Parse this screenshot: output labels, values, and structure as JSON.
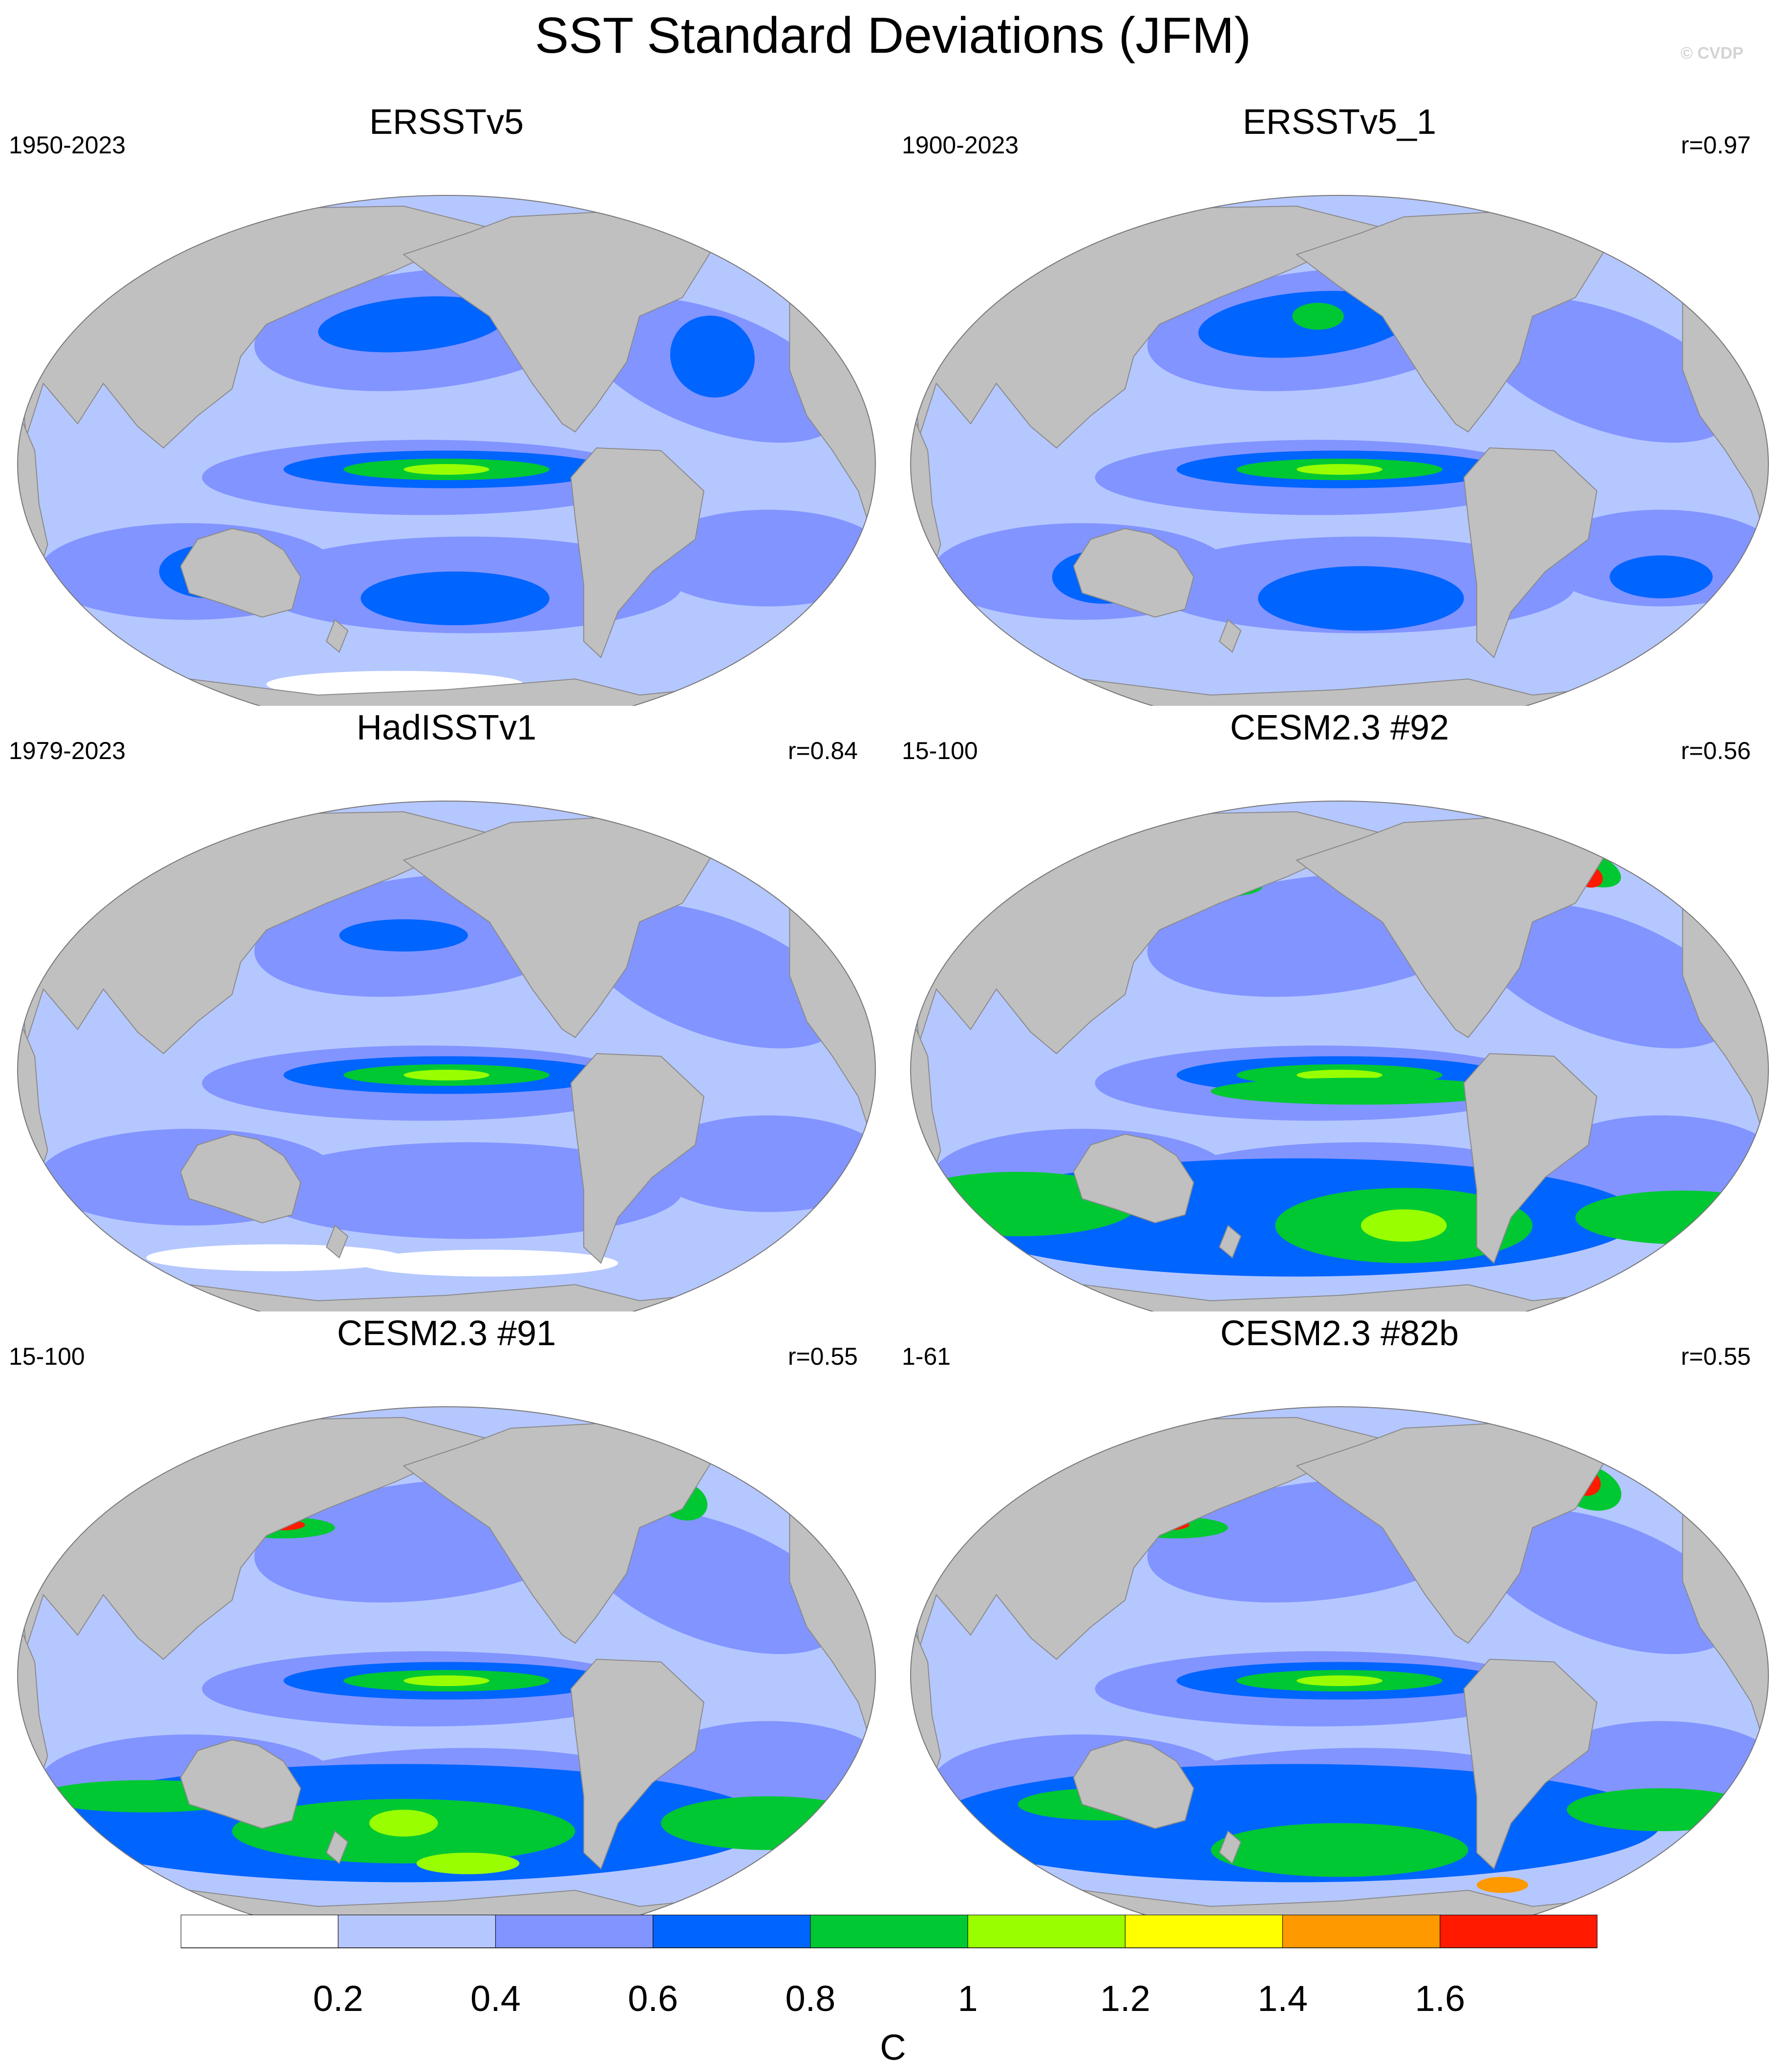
{
  "title": "SST Standard Deviations (JFM)",
  "credit": "© CVDP",
  "colorbar": {
    "units": "C",
    "ticks": [
      "0.2",
      "0.4",
      "0.6",
      "0.8",
      "1",
      "1.2",
      "1.4",
      "1.6"
    ],
    "colors": [
      "#ffffff",
      "#b5c7ff",
      "#8294ff",
      "#0064ff",
      "#00c832",
      "#99ff00",
      "#ffff00",
      "#ff9900",
      "#ff1a00"
    ]
  },
  "land_color": "#c0c0c0",
  "panels": [
    {
      "title": "ERSSTv5",
      "years": "1950-2023",
      "corr": ""
    },
    {
      "title": "ERSSTv5_1",
      "years": "1900-2023",
      "corr": "r=0.97"
    },
    {
      "title": "HadISSTv1",
      "years": "1979-2023",
      "corr": "r=0.84"
    },
    {
      "title": "CESM2.3 #92",
      "years": "15-100",
      "corr": "r=0.56"
    },
    {
      "title": "CESM2.3 #91",
      "years": "15-100",
      "corr": "r=0.55"
    },
    {
      "title": "CESM2.3 #82b",
      "years": "1-61",
      "corr": "r=0.55"
    }
  ]
}
